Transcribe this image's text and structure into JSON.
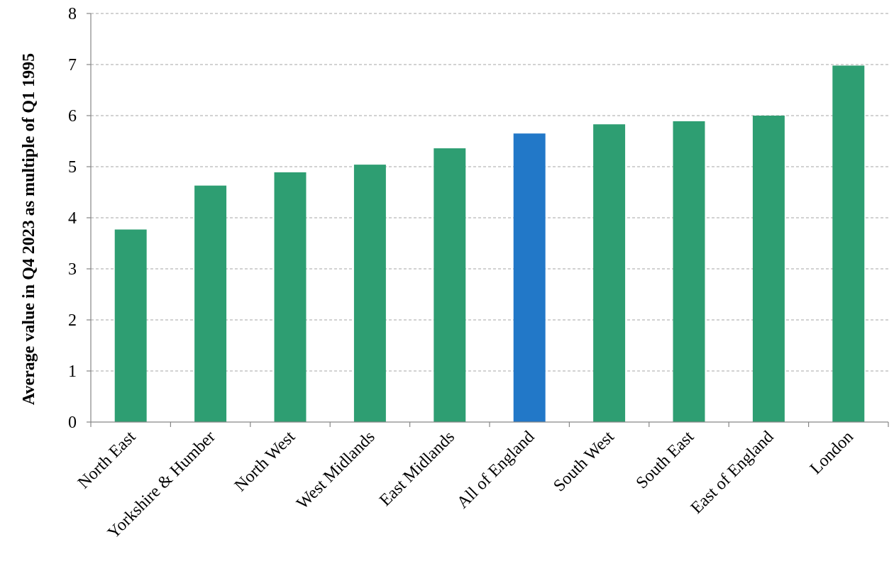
{
  "chart_data": {
    "type": "bar",
    "title": "",
    "xlabel": "",
    "ylabel": "Average value in Q4 2023 as multiple of Q1 1995",
    "ylim": [
      0,
      8
    ],
    "yticks": [
      "0",
      "1",
      "2",
      "3",
      "4",
      "5",
      "6",
      "7",
      "8"
    ],
    "grid": true,
    "categories": [
      "North East",
      "Yorkshire & Humber",
      "North West",
      "West Midlands",
      "East Midlands",
      "All of England",
      "South West",
      "South East",
      "East of England",
      "London"
    ],
    "values": [
      3.77,
      4.63,
      4.89,
      5.04,
      5.36,
      5.65,
      5.83,
      5.89,
      6.0,
      6.98
    ],
    "colors": [
      "#2e9e72",
      "#2e9e72",
      "#2e9e72",
      "#2e9e72",
      "#2e9e72",
      "#2278c8",
      "#2e9e72",
      "#2e9e72",
      "#2e9e72",
      "#2e9e72"
    ]
  }
}
